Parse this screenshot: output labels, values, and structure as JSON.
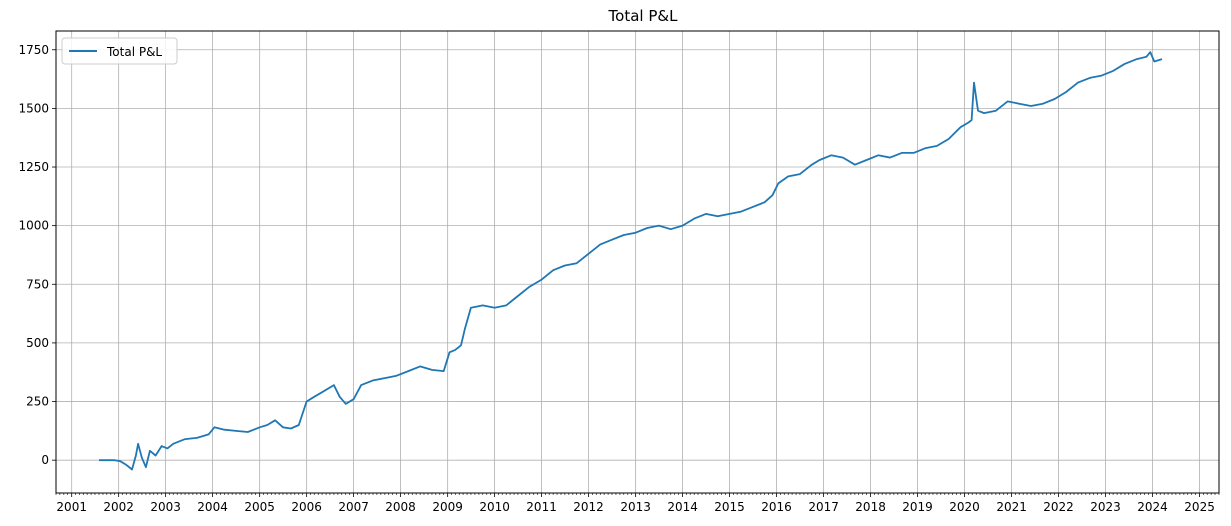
{
  "chart_data": {
    "type": "line",
    "title": "Total P&L",
    "xlabel": "",
    "ylabel": "",
    "x_range": [
      "2000-09-01",
      "2025-06-01"
    ],
    "ylim": [
      -140,
      1830
    ],
    "x_ticks": [
      "2001",
      "2002",
      "2003",
      "2004",
      "2005",
      "2006",
      "2007",
      "2008",
      "2009",
      "2010",
      "2011",
      "2012",
      "2013",
      "2014",
      "2015",
      "2016",
      "2017",
      "2018",
      "2019",
      "2020",
      "2021",
      "2022",
      "2023",
      "2024",
      "2025"
    ],
    "y_ticks": [
      0,
      250,
      500,
      750,
      1000,
      1250,
      1500,
      1750
    ],
    "grid": true,
    "minor_x_ticks": "monthly",
    "legend": {
      "position": "top-left",
      "entries": [
        "Total P&L"
      ]
    },
    "series": [
      {
        "name": "Total P&L",
        "color": "#1f77b4",
        "x": [
          "2001-08-01",
          "2001-12-01",
          "2002-01-15",
          "2002-03-01",
          "2002-04-15",
          "2002-05-15",
          "2002-06-01",
          "2002-07-01",
          "2002-08-01",
          "2002-09-01",
          "2002-10-15",
          "2002-12-01",
          "2003-01-15",
          "2003-03-01",
          "2003-06-01",
          "2003-09-01",
          "2003-12-01",
          "2004-01-15",
          "2004-04-01",
          "2004-07-01",
          "2004-10-01",
          "2005-01-01",
          "2005-03-01",
          "2005-05-01",
          "2005-07-01",
          "2005-09-01",
          "2005-11-01",
          "2006-01-01",
          "2006-03-01",
          "2006-05-01",
          "2006-08-01",
          "2006-09-15",
          "2006-11-01",
          "2007-01-01",
          "2007-03-01",
          "2007-06-01",
          "2007-09-01",
          "2007-12-01",
          "2008-03-01",
          "2008-06-01",
          "2008-09-01",
          "2008-12-01",
          "2009-01-15",
          "2009-03-01",
          "2009-04-15",
          "2009-05-15",
          "2009-07-01",
          "2009-10-01",
          "2010-01-01",
          "2010-04-01",
          "2010-07-01",
          "2010-10-01",
          "2011-01-01",
          "2011-04-01",
          "2011-07-01",
          "2011-10-01",
          "2012-01-01",
          "2012-04-01",
          "2012-07-01",
          "2012-10-01",
          "2013-01-01",
          "2013-04-01",
          "2013-07-01",
          "2013-10-01",
          "2014-01-01",
          "2014-04-01",
          "2014-07-01",
          "2014-10-01",
          "2015-01-01",
          "2015-04-01",
          "2015-07-01",
          "2015-10-01",
          "2015-12-01",
          "2016-01-15",
          "2016-04-01",
          "2016-07-01",
          "2016-10-01",
          "2016-12-01",
          "2017-03-01",
          "2017-06-01",
          "2017-09-01",
          "2017-12-01",
          "2018-03-01",
          "2018-06-01",
          "2018-09-01",
          "2018-12-01",
          "2019-03-01",
          "2019-06-01",
          "2019-09-01",
          "2019-12-01",
          "2020-02-01",
          "2020-02-25",
          "2020-03-15",
          "2020-04-15",
          "2020-06-01",
          "2020-09-01",
          "2020-12-01",
          "2021-03-01",
          "2021-06-01",
          "2021-09-01",
          "2021-12-01",
          "2022-03-01",
          "2022-06-01",
          "2022-09-01",
          "2022-12-01",
          "2023-03-01",
          "2023-06-01",
          "2023-09-01",
          "2023-11-15",
          "2023-12-15",
          "2024-01-15",
          "2024-03-15"
        ],
        "y": [
          0,
          0,
          -5,
          -20,
          -40,
          20,
          70,
          10,
          -30,
          40,
          20,
          60,
          50,
          70,
          90,
          95,
          110,
          140,
          130,
          125,
          120,
          140,
          150,
          170,
          140,
          135,
          150,
          250,
          270,
          290,
          320,
          270,
          240,
          260,
          320,
          340,
          350,
          360,
          380,
          400,
          385,
          380,
          460,
          470,
          490,
          560,
          650,
          660,
          650,
          660,
          700,
          740,
          770,
          810,
          830,
          840,
          880,
          920,
          940,
          960,
          970,
          990,
          1000,
          985,
          1000,
          1030,
          1050,
          1040,
          1050,
          1060,
          1080,
          1100,
          1130,
          1180,
          1210,
          1220,
          1260,
          1280,
          1300,
          1290,
          1260,
          1280,
          1300,
          1290,
          1310,
          1310,
          1330,
          1340,
          1370,
          1420,
          1440,
          1450,
          1610,
          1490,
          1480,
          1490,
          1530,
          1520,
          1510,
          1520,
          1540,
          1570,
          1610,
          1630,
          1640,
          1660,
          1690,
          1710,
          1720,
          1740,
          1700,
          1710
        ]
      }
    ]
  }
}
